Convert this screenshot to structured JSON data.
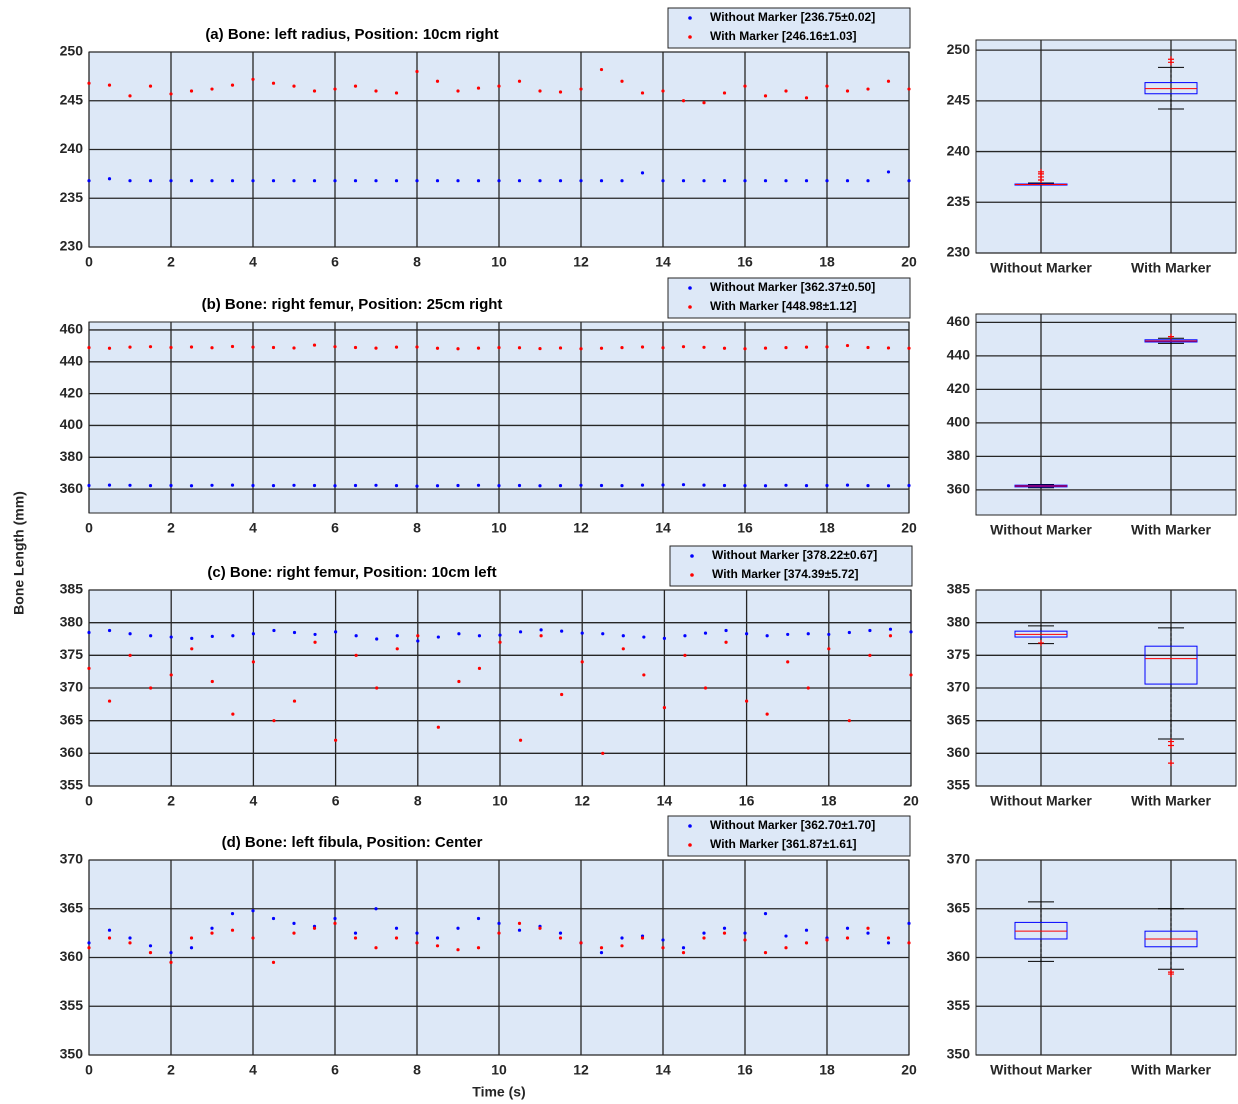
{
  "ylabel": "Bone Length (mm)",
  "xlabel": "Time (s)",
  "chart_data": [
    {
      "type": "scatter",
      "title": "(a) Bone: left radius, Position: 10cm right",
      "x": [
        0,
        0.5,
        1,
        1.5,
        2,
        2.5,
        3,
        3.5,
        4,
        4.5,
        5,
        5.5,
        6,
        6.5,
        7,
        7.5,
        8,
        8.5,
        9,
        9.5,
        10,
        10.5,
        11,
        11.5,
        12,
        12.5,
        13,
        13.5,
        14,
        14.5,
        15,
        15.5,
        16,
        16.5,
        17,
        17.5,
        18,
        18.5,
        19,
        19.5,
        20
      ],
      "series": [
        {
          "name": "Without Marker [236.75±0.02]",
          "color": "#0000ff",
          "values": [
            236.8,
            237.0,
            236.8,
            236.8,
            236.8,
            236.8,
            236.8,
            236.8,
            236.8,
            236.8,
            236.8,
            236.8,
            236.8,
            236.8,
            236.8,
            236.8,
            236.8,
            236.8,
            236.8,
            236.8,
            236.8,
            236.8,
            236.8,
            236.8,
            236.8,
            236.8,
            236.8,
            237.6,
            236.8,
            236.8,
            236.8,
            236.8,
            236.8,
            236.8,
            236.8,
            236.8,
            236.8,
            236.8,
            236.8,
            237.7,
            236.8
          ]
        },
        {
          "name": "With Marker [246.16±1.03]",
          "color": "#ff0000",
          "values": [
            246.8,
            246.6,
            245.5,
            246.5,
            245.7,
            246.0,
            246.2,
            246.6,
            247.2,
            246.8,
            246.5,
            246.0,
            246.2,
            246.5,
            246.0,
            245.8,
            248.0,
            247.0,
            246.0,
            246.3,
            246.5,
            247.0,
            246.0,
            245.9,
            246.2,
            248.2,
            247.0,
            245.8,
            246.0,
            245.0,
            244.8,
            245.8,
            246.5,
            245.5,
            246.0,
            245.3,
            246.5,
            246.0,
            246.2,
            247.0,
            246.2
          ]
        }
      ],
      "xlim": [
        0,
        20
      ],
      "xticks": [
        0,
        2,
        4,
        6,
        8,
        10,
        12,
        14,
        16,
        18,
        20
      ],
      "ylim": [
        230,
        250
      ],
      "yticks": [
        230,
        235,
        240,
        245,
        250
      ],
      "grid": true
    },
    {
      "type": "box",
      "categories": [
        "Without Marker",
        "With Marker"
      ],
      "boxes": [
        {
          "q1": 236.7,
          "median": 236.75,
          "q3": 236.8,
          "whisker_low": 236.7,
          "whisker_high": 236.9,
          "outliers": [
            237.2,
            237.5,
            237.8,
            238.0
          ]
        },
        {
          "q1": 245.7,
          "median": 246.2,
          "q3": 246.8,
          "whisker_low": 244.2,
          "whisker_high": 248.3,
          "outliers": [
            248.8,
            249.1
          ]
        }
      ],
      "ylim": [
        230,
        251
      ],
      "yticks": [
        230,
        235,
        240,
        245,
        250
      ],
      "grid": true
    },
    {
      "type": "scatter",
      "title": "(b) Bone: right femur, Position:  25cm right",
      "x": [
        0,
        0.5,
        1,
        1.5,
        2,
        2.5,
        3,
        3.5,
        4,
        4.5,
        5,
        5.5,
        6,
        6.5,
        7,
        7.5,
        8,
        8.5,
        9,
        9.5,
        10,
        10.5,
        11,
        11.5,
        12,
        12.5,
        13,
        13.5,
        14,
        14.5,
        15,
        15.5,
        16,
        16.5,
        17,
        17.5,
        18,
        18.5,
        19,
        19.5,
        20
      ],
      "series": [
        {
          "name": "Without Marker [362.37±0.50]",
          "color": "#0000ff",
          "values": [
            362.3,
            362.5,
            362.4,
            362.2,
            362.3,
            362.1,
            362.4,
            362.5,
            362.3,
            362.2,
            362.4,
            362.3,
            362.1,
            362.3,
            362.4,
            362.2,
            361.9,
            362.1,
            362.3,
            362.4,
            362.2,
            362.3,
            362.1,
            362.2,
            362.4,
            362.3,
            362.2,
            362.5,
            362.6,
            362.8,
            362.5,
            362.3,
            362.2,
            362.1,
            362.4,
            362.2,
            362.3,
            362.5,
            362.2,
            362.1,
            362.3
          ]
        },
        {
          "name": "With Marker [448.98±1.12]",
          "color": "#ff0000",
          "values": [
            448.9,
            448.5,
            449.2,
            449.5,
            449.0,
            449.3,
            448.8,
            449.6,
            449.2,
            449.0,
            448.7,
            450.5,
            449.5,
            449.0,
            448.6,
            449.2,
            449.3,
            448.5,
            448.2,
            448.6,
            448.9,
            448.8,
            448.3,
            448.7,
            448.2,
            448.5,
            448.9,
            449.3,
            448.8,
            449.5,
            449.1,
            448.5,
            448.2,
            448.6,
            448.9,
            449.2,
            449.4,
            450.2,
            449.0,
            448.7,
            448.5
          ]
        }
      ],
      "xlim": [
        0,
        20
      ],
      "xticks": [
        0,
        2,
        4,
        6,
        8,
        10,
        12,
        14,
        16,
        18,
        20
      ],
      "ylim": [
        345,
        465
      ],
      "yticks": [
        360,
        380,
        400,
        420,
        440,
        460
      ],
      "grid": true
    },
    {
      "type": "box",
      "categories": [
        "Without Marker",
        "With Marker"
      ],
      "boxes": [
        {
          "q1": 361.8,
          "median": 362.3,
          "q3": 362.8,
          "whisker_low": 361.3,
          "whisker_high": 363.2,
          "outliers": []
        },
        {
          "q1": 448.3,
          "median": 448.9,
          "q3": 449.6,
          "whisker_low": 447.5,
          "whisker_high": 450.5,
          "outliers": [
            451.5
          ]
        }
      ],
      "ylim": [
        345,
        465
      ],
      "yticks": [
        360,
        380,
        400,
        420,
        440,
        460
      ],
      "grid": true
    },
    {
      "type": "scatter",
      "title": "(c) Bone: right femur, Position:  10cm left",
      "x": [
        0,
        0.5,
        1,
        1.5,
        2,
        2.5,
        3,
        3.5,
        4,
        4.5,
        5,
        5.5,
        6,
        6.5,
        7,
        7.5,
        8,
        8.5,
        9,
        9.5,
        10,
        10.5,
        11,
        11.5,
        12,
        12.5,
        13,
        13.5,
        14,
        14.5,
        15,
        15.5,
        16,
        16.5,
        17,
        17.5,
        18,
        18.5,
        19,
        19.5,
        20
      ],
      "series": [
        {
          "name": "Without Marker [378.22±0.67]",
          "color": "#0000ff",
          "values": [
            378.5,
            378.8,
            378.3,
            378.0,
            377.8,
            377.6,
            377.9,
            378.0,
            378.3,
            378.8,
            378.5,
            378.2,
            378.6,
            378.0,
            377.5,
            378.0,
            377.2,
            377.8,
            378.3,
            378.0,
            378.1,
            378.6,
            378.9,
            378.7,
            378.4,
            378.3,
            378.0,
            377.8,
            377.6,
            378.0,
            378.4,
            378.8,
            378.3,
            378.0,
            378.2,
            378.3,
            378.2,
            378.5,
            378.8,
            379.0,
            378.6
          ]
        },
        {
          "name": "With Marker [374.39±5.72]",
          "color": "#ff0000",
          "values": [
            373,
            368,
            375,
            370,
            372,
            376,
            371,
            366,
            374,
            365,
            368,
            377,
            362,
            375,
            370,
            376,
            378,
            364,
            371,
            373,
            377,
            362,
            378,
            369,
            374,
            360,
            376,
            372,
            367,
            375,
            370,
            377,
            368,
            366,
            374,
            370,
            376,
            365,
            375,
            378,
            372
          ]
        }
      ],
      "xlim": [
        0,
        20
      ],
      "xticks": [
        0,
        2,
        4,
        6,
        8,
        10,
        12,
        14,
        16,
        18,
        20
      ],
      "ylim": [
        355,
        385
      ],
      "yticks": [
        355,
        360,
        365,
        370,
        375,
        380,
        385
      ],
      "grid": true
    },
    {
      "type": "box",
      "categories": [
        "Without Marker",
        "With Marker"
      ],
      "boxes": [
        {
          "q1": 377.8,
          "median": 378.2,
          "q3": 378.7,
          "whisker_low": 376.8,
          "whisker_high": 379.5,
          "outliers": [
            376.9
          ]
        },
        {
          "q1": 370.6,
          "median": 374.5,
          "q3": 376.4,
          "whisker_low": 362.2,
          "whisker_high": 379.2,
          "outliers": [
            361.8,
            361.2,
            358.5
          ]
        }
      ],
      "ylim": [
        355,
        385
      ],
      "yticks": [
        355,
        360,
        365,
        370,
        375,
        380,
        385
      ],
      "grid": true
    },
    {
      "type": "scatter",
      "title": "(d) Bone: left fibula, Position: Center",
      "x": [
        0,
        0.5,
        1,
        1.5,
        2,
        2.5,
        3,
        3.5,
        4,
        4.5,
        5,
        5.5,
        6,
        6.5,
        7,
        7.5,
        8,
        8.5,
        9,
        9.5,
        10,
        10.5,
        11,
        11.5,
        12,
        12.5,
        13,
        13.5,
        14,
        14.5,
        15,
        15.5,
        16,
        16.5,
        17,
        17.5,
        18,
        18.5,
        19,
        19.5,
        20
      ],
      "series": [
        {
          "name": "Without Marker [362.70±1.70]",
          "color": "#0000ff",
          "values": [
            361.5,
            362.8,
            362.0,
            361.2,
            360.5,
            361.0,
            363.0,
            364.5,
            364.8,
            364.0,
            363.5,
            363.2,
            364.0,
            362.5,
            365.0,
            363.0,
            362.5,
            362.0,
            363.0,
            364.0,
            363.5,
            362.8,
            363.2,
            362.5,
            361.5,
            360.5,
            362.0,
            362.2,
            361.8,
            361.0,
            362.5,
            363.0,
            362.5,
            364.5,
            362.2,
            362.8,
            362.0,
            363.0,
            362.5,
            361.5,
            363.5
          ]
        },
        {
          "name": "With Marker [361.87±1.61]",
          "color": "#ff0000",
          "values": [
            361.0,
            362.0,
            361.5,
            360.5,
            359.5,
            362.0,
            362.5,
            362.8,
            362.0,
            359.5,
            362.5,
            363.0,
            363.5,
            362.0,
            361.0,
            362.0,
            361.5,
            361.2,
            360.8,
            361.0,
            362.5,
            363.5,
            363.0,
            362.0,
            361.5,
            361.0,
            361.2,
            362.0,
            361.0,
            360.5,
            362.0,
            362.5,
            361.8,
            360.5,
            361.0,
            361.5,
            361.8,
            362.0,
            363.0,
            362.0,
            361.5
          ]
        }
      ],
      "xlim": [
        0,
        20
      ],
      "xticks": [
        0,
        2,
        4,
        6,
        8,
        10,
        12,
        14,
        16,
        18,
        20
      ],
      "ylim": [
        350,
        370
      ],
      "yticks": [
        350,
        355,
        360,
        365,
        370
      ],
      "grid": true
    },
    {
      "type": "box",
      "categories": [
        "Without Marker",
        "With Marker"
      ],
      "boxes": [
        {
          "q1": 361.9,
          "median": 362.7,
          "q3": 363.6,
          "whisker_low": 359.6,
          "whisker_high": 365.7,
          "outliers": []
        },
        {
          "q1": 361.1,
          "median": 361.9,
          "q3": 362.7,
          "whisker_low": 358.8,
          "whisker_high": 365.0,
          "outliers": [
            358.5,
            358.3
          ]
        }
      ],
      "ylim": [
        350,
        370
      ],
      "yticks": [
        350,
        355,
        360,
        365,
        370
      ],
      "grid": true
    }
  ]
}
